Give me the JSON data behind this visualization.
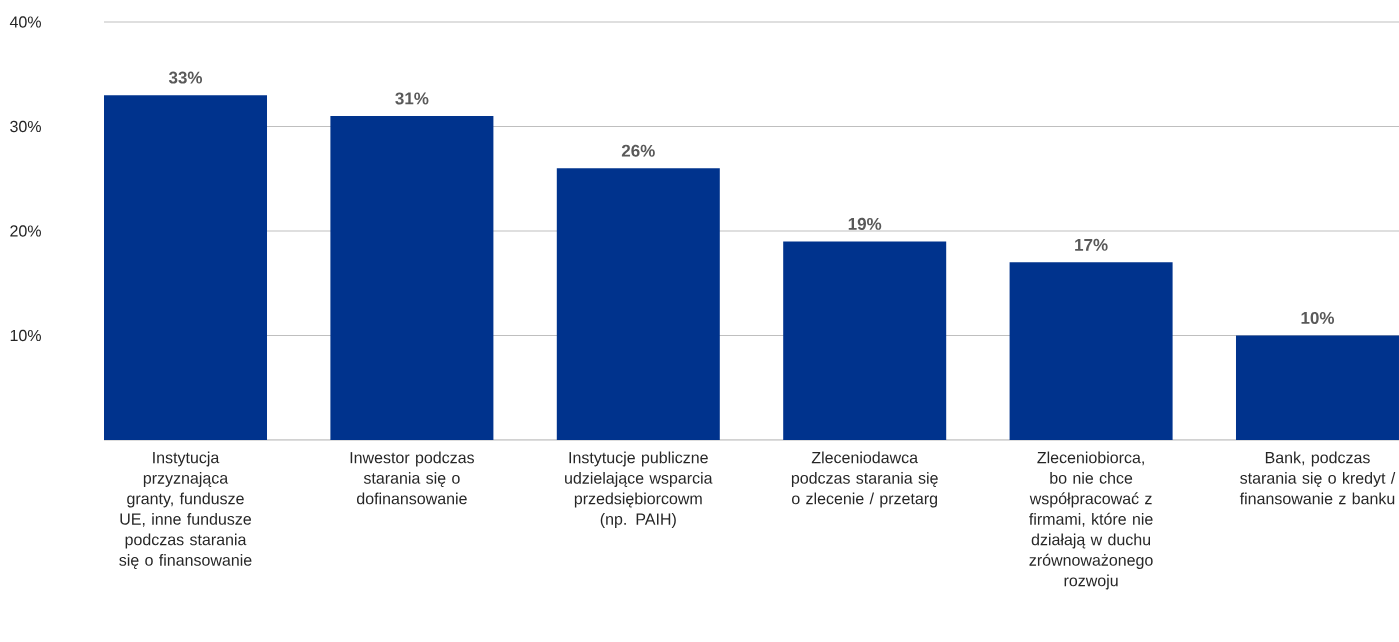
{
  "chart_data": {
    "type": "bar",
    "categories": [
      "Instytucja przyznająca granty, fundusze UE, inne fundusze podczas starania się o finansowanie",
      "Inwestor podczas starania się o dofinansowanie",
      "Instytucje publiczne udzielające wsparcia przedsiębiorcowm (np. PAIH)",
      "Zleceniodawca podczas starania się o zlecenie / przetarg",
      "Zleceniobiorca, bo nie chce współpracować z firmami, które nie działają w duchu zrównoważonego rozwoju",
      "Bank, podczas starania się o kredyt / finansowanie z banku"
    ],
    "values": [
      33,
      31,
      26,
      19,
      17,
      10
    ],
    "value_labels": [
      "33%",
      "31%",
      "26%",
      "19%",
      "17%",
      "10%"
    ],
    "color": "#00338d",
    "ylim": [
      0,
      40
    ],
    "yticks": [
      {
        "value": 10,
        "label": "10%"
      },
      {
        "value": 20,
        "label": "20%"
      },
      {
        "value": 30,
        "label": "30%"
      },
      {
        "value": 40,
        "label": "40%"
      }
    ],
    "grid": "y"
  }
}
